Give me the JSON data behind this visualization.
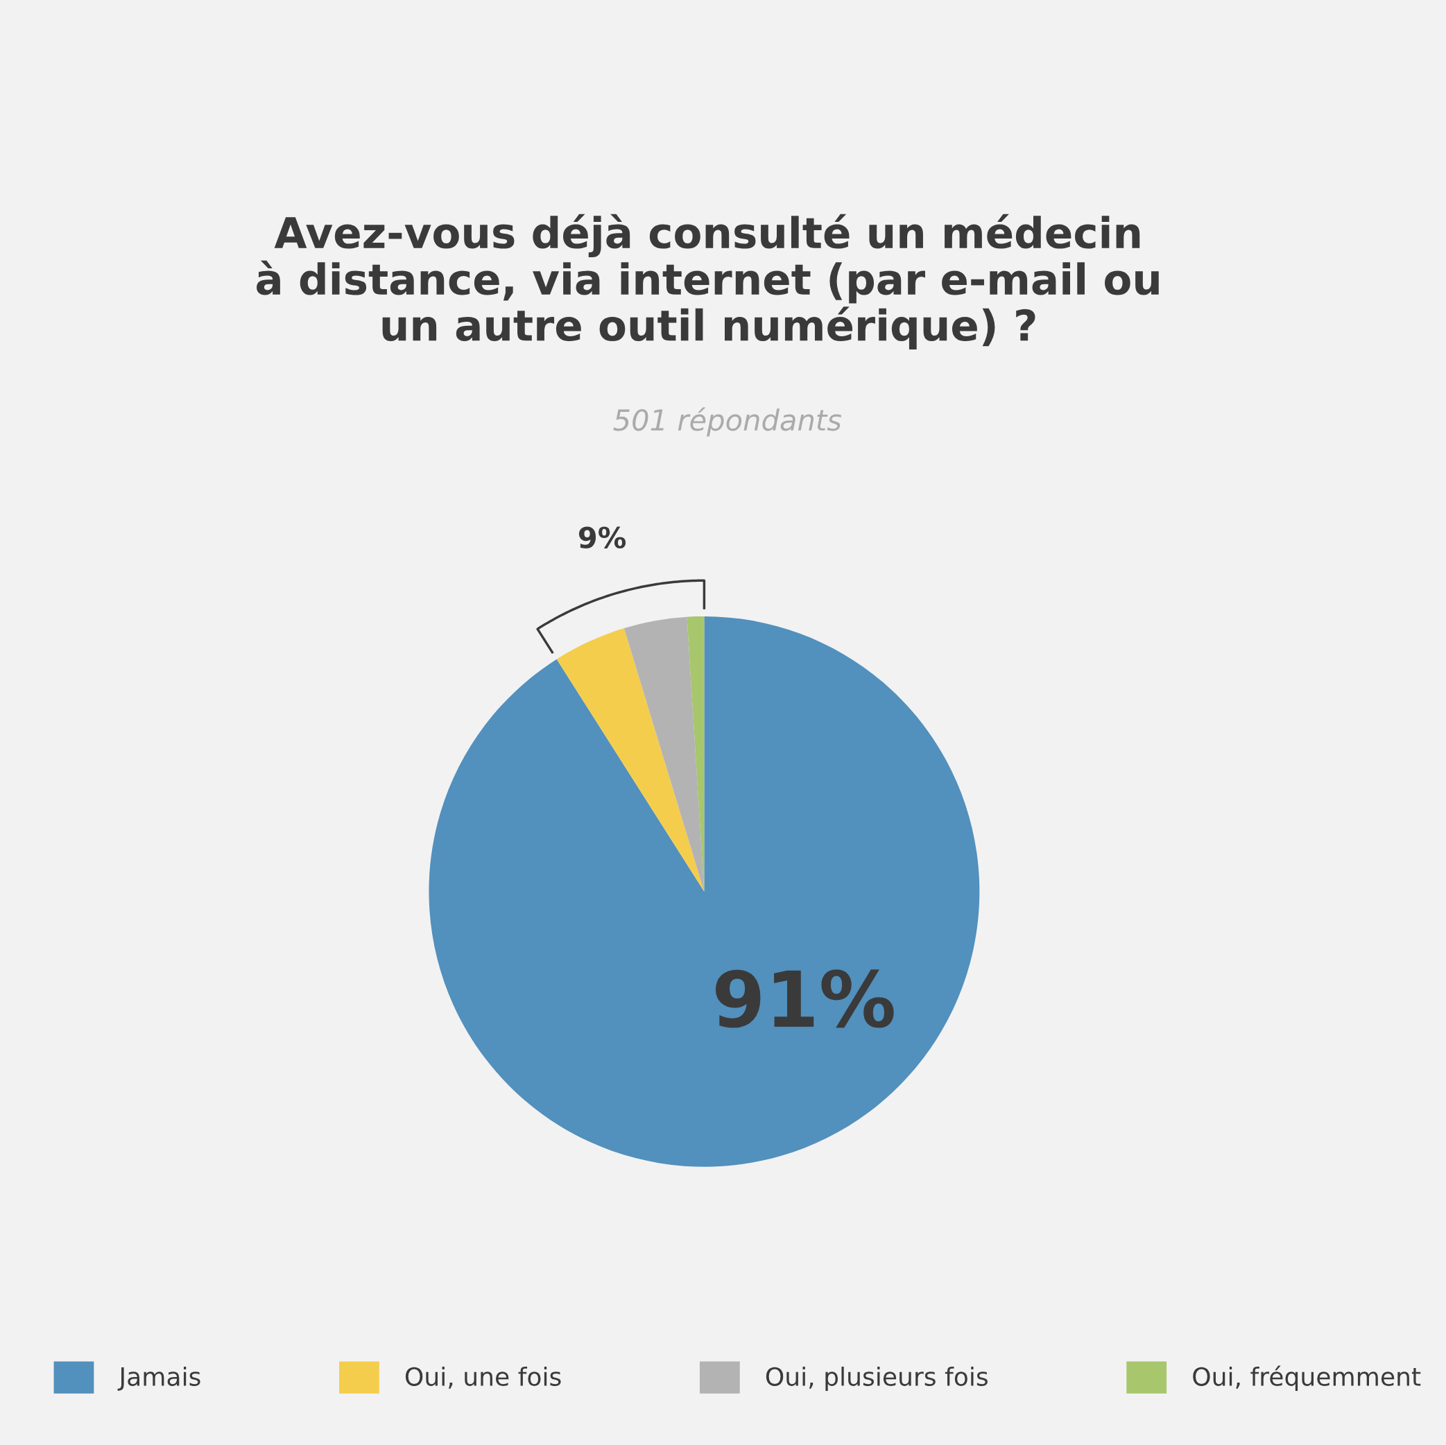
{
  "chart_data": {
    "type": "pie",
    "title": "Avez-vous déjà consulté un médecin\nà distance, via internet (par e-mail ou\nun autre outil numérique) ?",
    "subtitle": "501 répondants",
    "categories": [
      "Jamais",
      "Oui, une fois",
      "Oui, plusieurs fois",
      "Oui, fréquemment"
    ],
    "values": [
      91,
      4.3,
      3.7,
      1.0
    ],
    "colors": [
      "#5290bd",
      "#f5cd4d",
      "#b3b3b3",
      "#a8c66c"
    ],
    "value_labels": [
      "91%",
      null,
      null,
      null
    ],
    "annotations": [
      "9%"
    ],
    "legend": "bottom"
  }
}
